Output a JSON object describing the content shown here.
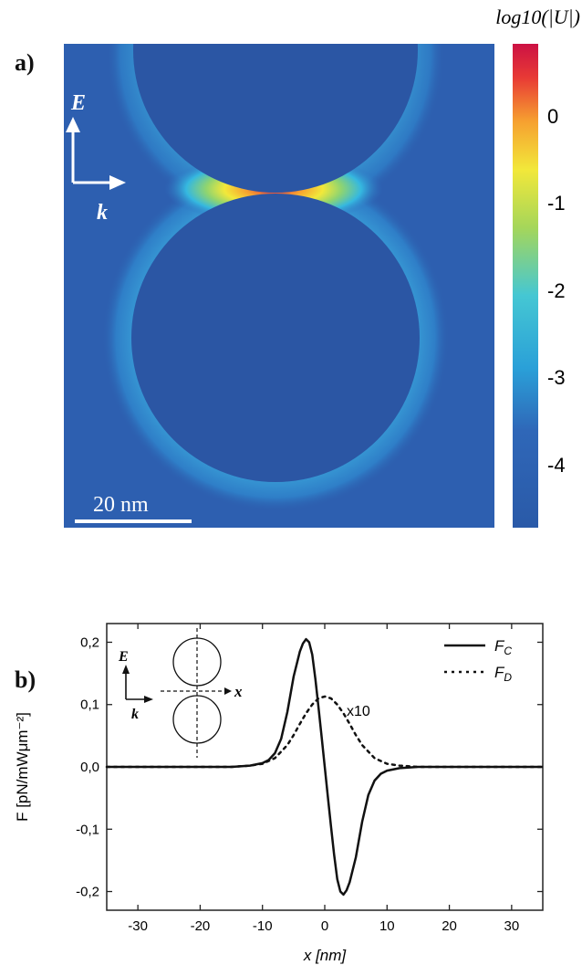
{
  "panel_a": {
    "label": "a)",
    "colorbar_title": "log10(|U|)",
    "colorbar_ticks": [
      "0",
      "-1",
      "-2",
      "-3",
      "-4"
    ],
    "e_label": "E",
    "k_label": "k",
    "scalebar_label": "20 nm"
  },
  "panel_b": {
    "label": "b)",
    "annotation": "x10",
    "inset": {
      "e_label": "E",
      "k_label": "k",
      "x_label": "x"
    }
  },
  "chart_data": {
    "type": "line",
    "xlabel": "x [nm]",
    "ylabel": "F [pN/mWμm⁻²]",
    "xlim": [
      -35,
      35
    ],
    "ylim": [
      -0.23,
      0.23
    ],
    "xticks": [
      -30,
      -20,
      -10,
      0,
      10,
      20,
      30
    ],
    "yticks": [
      0.2,
      0.1,
      0.0,
      -0.1,
      -0.2
    ],
    "yticklabels": [
      "0,2",
      "0,1",
      "0,0",
      "-0,1",
      "-0,2"
    ],
    "legend_position": "top-right",
    "series": [
      {
        "name": "F_C",
        "style": "solid",
        "x": [
          -35,
          -15,
          -12,
          -10,
          -9,
          -8,
          -7,
          -6,
          -5,
          -4,
          -3.5,
          -3,
          -2.5,
          -2,
          -1.5,
          -1,
          -0.5,
          0,
          0.5,
          1,
          1.5,
          2,
          2.5,
          3,
          3.5,
          4,
          5,
          6,
          7,
          8,
          9,
          10,
          12,
          15,
          35
        ],
        "y": [
          0,
          0,
          0.002,
          0.006,
          0.011,
          0.022,
          0.045,
          0.088,
          0.145,
          0.185,
          0.198,
          0.205,
          0.2,
          0.18,
          0.14,
          0.095,
          0.048,
          0,
          -0.048,
          -0.095,
          -0.14,
          -0.18,
          -0.2,
          -0.205,
          -0.198,
          -0.185,
          -0.145,
          -0.088,
          -0.045,
          -0.022,
          -0.011,
          -0.006,
          -0.002,
          0,
          0
        ]
      },
      {
        "name": "F_D",
        "style": "dotted",
        "x": [
          -35,
          -15,
          -12,
          -10,
          -8,
          -6,
          -5,
          -4,
          -3,
          -2,
          -1,
          0,
          1,
          2,
          3,
          4,
          5,
          6,
          8,
          10,
          12,
          15,
          35
        ],
        "y": [
          0,
          0,
          0.002,
          0.005,
          0.014,
          0.035,
          0.051,
          0.069,
          0.086,
          0.1,
          0.11,
          0.113,
          0.11,
          0.1,
          0.086,
          0.069,
          0.051,
          0.035,
          0.014,
          0.005,
          0.002,
          0,
          0
        ]
      }
    ]
  }
}
